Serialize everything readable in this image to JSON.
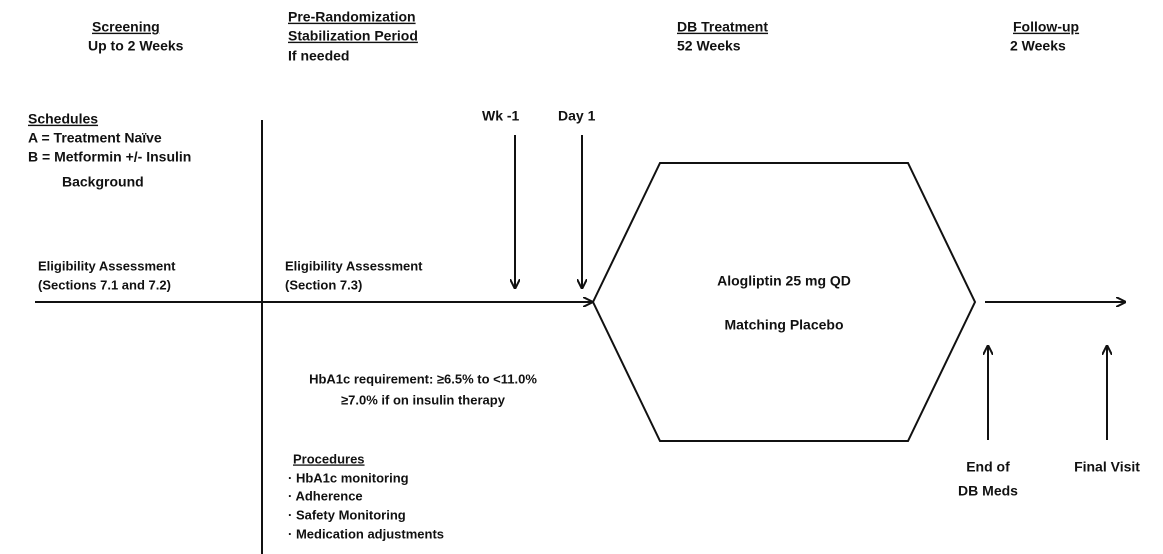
{
  "phases": [
    {
      "title": "Screening",
      "duration": "Up to 2 Weeks"
    },
    {
      "title": [
        "Pre-Randomization",
        "Stabilization Period"
      ],
      "duration": "If needed"
    },
    {
      "title": "DB Treatment",
      "duration": "52 Weeks"
    },
    {
      "title": "Follow-up",
      "duration": "2 Weeks"
    }
  ],
  "schedules": {
    "title": "Schedules",
    "items": [
      "A = Treatment Naïve",
      "B = Metformin +/- Insulin",
      "Background"
    ]
  },
  "eligibility": [
    [
      "Eligibility Assessment",
      "(Sections 7.1 and 7.2)"
    ],
    [
      "Eligibility Assessment",
      "(Section 7.3)"
    ]
  ],
  "timepoints": [
    "Wk -1",
    "Day 1"
  ],
  "treatment": [
    "Alogliptin 25 mg QD",
    "Matching Placebo"
  ],
  "hba1c": [
    "HbA1c requirement: ≥6.5% to <11.0%",
    "≥7.0% if on insulin therapy"
  ],
  "procedures": {
    "title": "Procedures",
    "items": [
      "· HbA1c monitoring",
      "· Adherence",
      "· Safety Monitoring",
      "· Medication adjustments"
    ]
  },
  "endpoints": [
    [
      "End of",
      "DB Meds"
    ],
    "Final Visit"
  ]
}
